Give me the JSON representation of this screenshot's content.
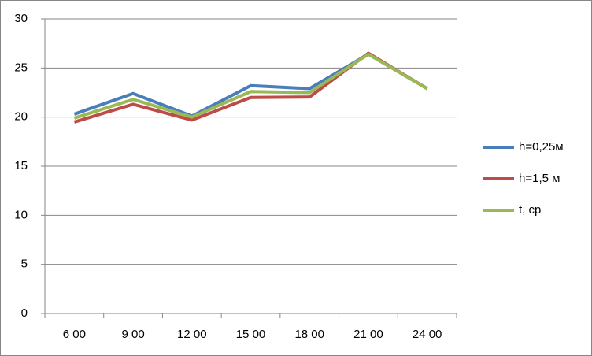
{
  "chart_data": {
    "type": "line",
    "categories": [
      "6 00",
      "9 00",
      "12 00",
      "15 00",
      "18 00",
      "21 00",
      "24 00"
    ],
    "series": [
      {
        "name": "h=0,25м",
        "color": "#4a7ebb",
        "values": [
          20.3,
          22.4,
          20.1,
          23.2,
          22.9,
          26.4,
          22.9
        ]
      },
      {
        "name": "h=1,5 м",
        "color": "#be4b48",
        "values": [
          19.5,
          21.3,
          19.7,
          22.0,
          22.05,
          26.5,
          22.9
        ]
      },
      {
        "name": "t, ср",
        "color": "#98b954",
        "values": [
          19.9,
          21.8,
          20.0,
          22.6,
          22.5,
          26.4,
          22.9
        ]
      }
    ],
    "ylim": [
      0,
      30
    ],
    "yticks": [
      0,
      5,
      10,
      15,
      20,
      25,
      30
    ],
    "grid": true,
    "legend": "right"
  }
}
